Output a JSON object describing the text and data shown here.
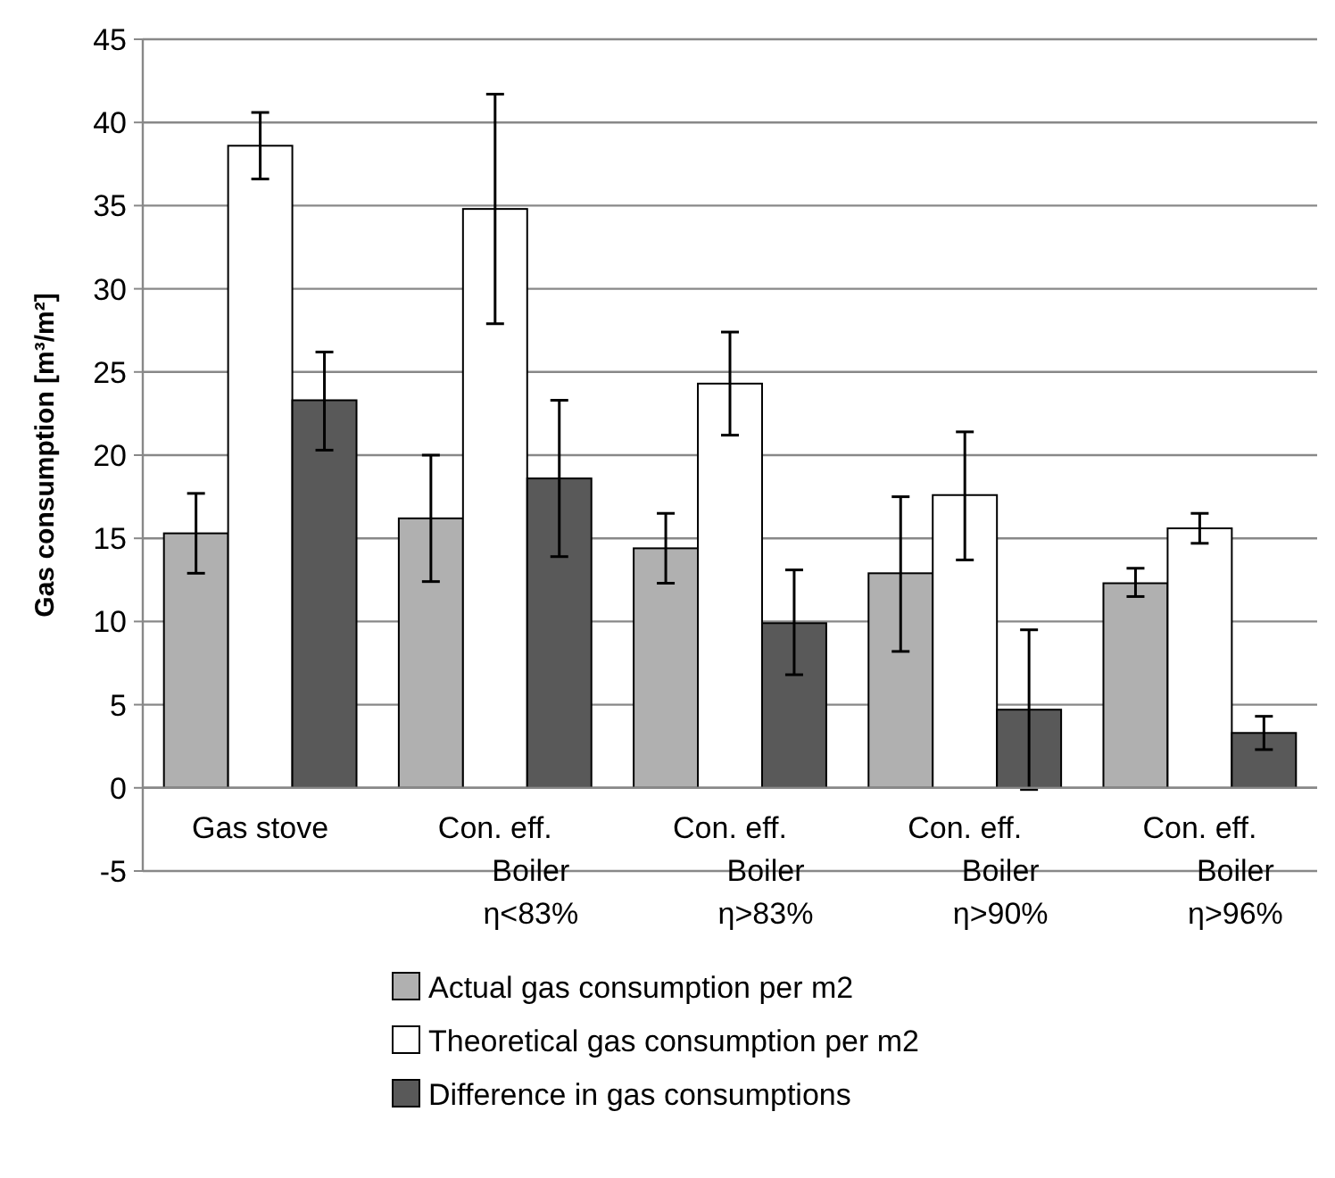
{
  "chart_data": {
    "type": "bar",
    "ylabel": "Gas consumption [m³/m²]",
    "categories": [
      "Gas stove",
      "Con. eff.\nBoiler\nη<83%",
      "Con. eff.\nBoiler\nη>83%",
      "Con. eff.\nBoiler\nη>90%",
      "Con. eff.\nBoiler\nη>96%"
    ],
    "series": [
      {
        "name": "Actual gas consumption per m2",
        "color": "#b0b0b0",
        "values": [
          15.3,
          16.2,
          14.4,
          12.9,
          12.3
        ],
        "errors": [
          [
            12.9,
            17.7
          ],
          [
            12.4,
            20.0
          ],
          [
            12.3,
            16.5
          ],
          [
            8.2,
            17.5
          ],
          [
            11.5,
            13.2
          ]
        ]
      },
      {
        "name": "Theoretical gas consumption per m2",
        "color": "#ffffff",
        "values": [
          38.6,
          34.8,
          24.3,
          17.6,
          15.6
        ],
        "errors": [
          [
            36.6,
            40.6
          ],
          [
            27.9,
            41.7
          ],
          [
            21.2,
            27.4
          ],
          [
            13.7,
            21.4
          ],
          [
            14.7,
            16.5
          ]
        ]
      },
      {
        "name": "Difference in gas consumptions",
        "color": "#595959",
        "values": [
          23.3,
          18.6,
          9.9,
          4.7,
          3.3
        ],
        "errors": [
          [
            20.3,
            26.2
          ],
          [
            13.9,
            23.3
          ],
          [
            6.8,
            13.1
          ],
          [
            -0.1,
            9.5
          ],
          [
            2.3,
            4.3
          ]
        ]
      }
    ],
    "ylim": [
      -5,
      45
    ],
    "yticks": [
      -5,
      0,
      5,
      10,
      15,
      20,
      25,
      30,
      35,
      40,
      45
    ],
    "grid": "y",
    "legend": "bottom"
  }
}
